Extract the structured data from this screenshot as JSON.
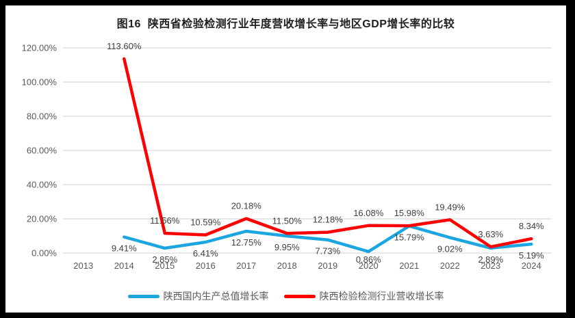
{
  "frame": {
    "background": "#000000",
    "card_background": "#ffffff"
  },
  "chart_data": {
    "type": "line",
    "title": "图16  陕西省检验检测行业年度营收增长率与地区GDP增长率的比较",
    "categories": [
      "2013",
      "2014",
      "2015",
      "2016",
      "2017",
      "2018",
      "2019",
      "2020",
      "2021",
      "2022",
      "2023",
      "2024"
    ],
    "series": [
      {
        "name": "陕西国内生产总值增长率",
        "color": "#1BA6DF",
        "label_position": "below",
        "values": [
          null,
          9.41,
          2.85,
          6.41,
          12.75,
          9.95,
          7.73,
          0.86,
          15.79,
          9.02,
          2.89,
          5.19
        ],
        "labels": [
          "",
          "9.41%",
          "2.85%",
          "6.41%",
          "12.75%",
          "9.95%",
          "7.73%",
          "0.86%",
          "15.79%",
          "9.02%",
          "2.89%",
          "5.19%"
        ]
      },
      {
        "name": "陕西检验检测行业营收增长率",
        "color": "#FF0000",
        "label_position": "above",
        "values": [
          null,
          113.6,
          11.56,
          10.59,
          20.18,
          11.5,
          12.18,
          16.08,
          15.98,
          19.49,
          3.63,
          8.34
        ],
        "labels": [
          "",
          "113.60%",
          "11.56%",
          "10.59%",
          "20.18%",
          "11.50%",
          "12.18%",
          "16.08%",
          "15.98%",
          "19.49%",
          "3.63%",
          "8.34%"
        ]
      }
    ],
    "xlabel": "",
    "ylabel": "",
    "y_ticks": [
      "0.00%",
      "20.00%",
      "40.00%",
      "60.00%",
      "80.00%",
      "100.00%",
      "120.00%"
    ],
    "ylim": [
      0,
      120
    ],
    "grid": true,
    "legend_position": "bottom",
    "colors": {
      "grid": "#D9D9D9",
      "axis_text": "#595959",
      "data_label": "#3F3F3F",
      "title_text": "#1F1F1F"
    }
  }
}
